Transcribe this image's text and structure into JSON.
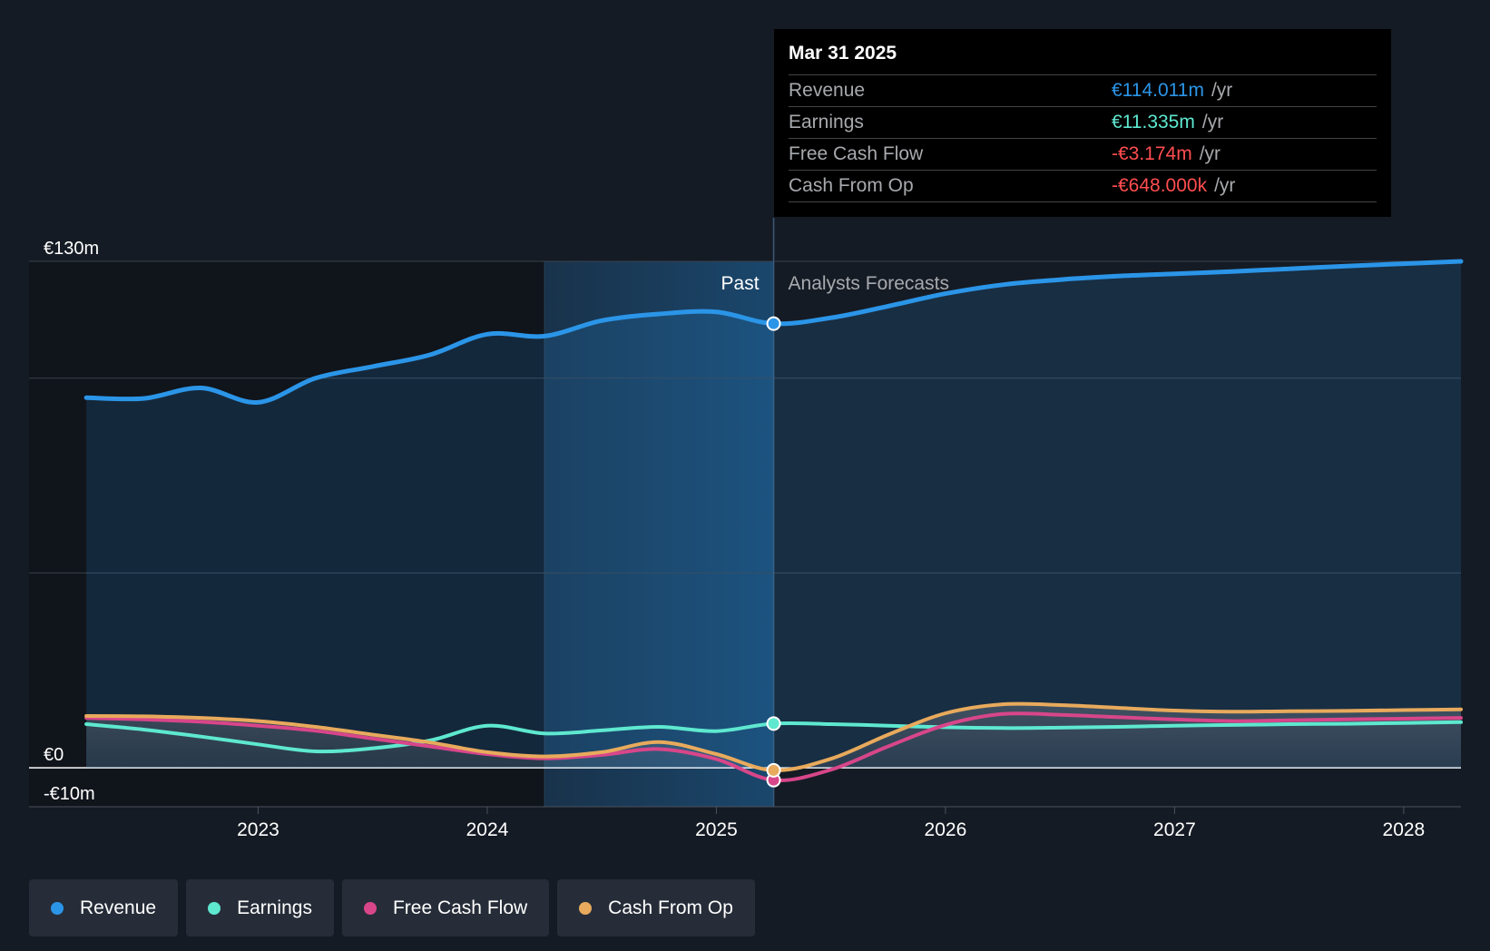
{
  "colors": {
    "background": "#151b24",
    "revenue": "#2b95e8",
    "earnings": "#5ee8d0",
    "fcf": "#d8468a",
    "cfo": "#e8aa5c",
    "negative": "#ff4d4f"
  },
  "tooltip": {
    "date": "Mar 31 2025",
    "rows": [
      {
        "label": "Revenue",
        "value": "€114.011m",
        "unit": "/yr"
      },
      {
        "label": "Earnings",
        "value": "€11.335m",
        "unit": "/yr"
      },
      {
        "label": "Free Cash Flow",
        "value": "-€3.174m",
        "unit": "/yr"
      },
      {
        "label": "Cash From Op",
        "value": "-€648.000k",
        "unit": "/yr"
      }
    ]
  },
  "legend": [
    {
      "label": "Revenue",
      "color": "#2b95e8"
    },
    {
      "label": "Earnings",
      "color": "#5ee8d0"
    },
    {
      "label": "Free Cash Flow",
      "color": "#d8468a"
    },
    {
      "label": "Cash From Op",
      "color": "#e8aa5c"
    }
  ],
  "chart_data": {
    "type": "line",
    "title": "",
    "past_label": "Past",
    "forecast_label": "Analysts Forecasts",
    "divider_x": 2025.25,
    "shade_start_x": 2024.25,
    "x_start": 2022.25,
    "xlim": [
      2022.0,
      2028.25
    ],
    "ylim": [
      -10,
      130
    ],
    "y_ticks": [
      {
        "value": 130,
        "label": "€130m"
      },
      {
        "value": 0,
        "label": "€0"
      },
      {
        "value": -10,
        "label": "-€10m"
      }
    ],
    "y_gridlines": [
      130,
      100,
      50
    ],
    "x_ticks": [
      {
        "value": 2023,
        "label": "2023"
      },
      {
        "value": 2024,
        "label": "2024"
      },
      {
        "value": 2025,
        "label": "2025"
      },
      {
        "value": 2026,
        "label": "2026"
      },
      {
        "value": 2027,
        "label": "2027"
      },
      {
        "value": 2028,
        "label": "2028"
      }
    ],
    "series": [
      {
        "name": "Revenue",
        "key": "revenue",
        "marker_x": 2025.25,
        "points": [
          [
            2022.25,
            95
          ],
          [
            2022.5,
            94.8
          ],
          [
            2022.75,
            97.5
          ],
          [
            2023.0,
            93.8
          ],
          [
            2023.25,
            100
          ],
          [
            2023.5,
            103
          ],
          [
            2023.75,
            106
          ],
          [
            2024.0,
            111.3
          ],
          [
            2024.25,
            110.8
          ],
          [
            2024.5,
            114.8
          ],
          [
            2024.75,
            116.5
          ],
          [
            2025.0,
            117
          ],
          [
            2025.25,
            114.01
          ],
          [
            2025.5,
            115.5
          ],
          [
            2025.75,
            118.5
          ],
          [
            2026.0,
            121.7
          ],
          [
            2026.25,
            124
          ],
          [
            2026.5,
            125.3
          ],
          [
            2026.75,
            126.2
          ],
          [
            2027.0,
            126.8
          ],
          [
            2027.25,
            127.4
          ],
          [
            2027.5,
            128.1
          ],
          [
            2027.75,
            128.8
          ],
          [
            2028.0,
            129.4
          ],
          [
            2028.25,
            130
          ]
        ]
      },
      {
        "name": "Earnings",
        "key": "earnings",
        "marker_x": 2025.25,
        "points": [
          [
            2022.25,
            11.2
          ],
          [
            2022.5,
            9.8
          ],
          [
            2022.75,
            8
          ],
          [
            2023.0,
            6
          ],
          [
            2023.25,
            4.2
          ],
          [
            2023.5,
            5
          ],
          [
            2023.75,
            7
          ],
          [
            2024.0,
            10.8
          ],
          [
            2024.25,
            8.8
          ],
          [
            2024.5,
            9.6
          ],
          [
            2024.75,
            10.5
          ],
          [
            2025.0,
            9.4
          ],
          [
            2025.25,
            11.34
          ],
          [
            2025.5,
            11.2
          ],
          [
            2025.75,
            10.8
          ],
          [
            2026.0,
            10.4
          ],
          [
            2026.25,
            10.2
          ],
          [
            2026.5,
            10.3
          ],
          [
            2026.75,
            10.5
          ],
          [
            2027.0,
            10.8
          ],
          [
            2027.25,
            11
          ],
          [
            2027.5,
            11.2
          ],
          [
            2027.75,
            11.3
          ],
          [
            2028.0,
            11.5
          ],
          [
            2028.25,
            11.7
          ]
        ]
      },
      {
        "name": "Free Cash Flow",
        "key": "fcf",
        "marker_x": 2025.25,
        "points": [
          [
            2022.25,
            12.8
          ],
          [
            2022.5,
            12.4
          ],
          [
            2022.75,
            11.8
          ],
          [
            2023.0,
            10.8
          ],
          [
            2023.25,
            9.5
          ],
          [
            2023.5,
            7.5
          ],
          [
            2023.75,
            5.5
          ],
          [
            2024.0,
            3.5
          ],
          [
            2024.25,
            2.4
          ],
          [
            2024.5,
            3.3
          ],
          [
            2024.75,
            4.8
          ],
          [
            2025.0,
            2.2
          ],
          [
            2025.25,
            -3.17
          ],
          [
            2025.5,
            -0.5
          ],
          [
            2025.75,
            5.5
          ],
          [
            2026.0,
            11
          ],
          [
            2026.25,
            13.8
          ],
          [
            2026.5,
            13.6
          ],
          [
            2026.75,
            13
          ],
          [
            2027.0,
            12.4
          ],
          [
            2027.25,
            12
          ],
          [
            2027.5,
            12.2
          ],
          [
            2027.75,
            12.4
          ],
          [
            2028.0,
            12.6
          ],
          [
            2028.25,
            12.8
          ]
        ]
      },
      {
        "name": "Cash From Op",
        "key": "cfo",
        "marker_x": 2025.25,
        "points": [
          [
            2022.25,
            13.3
          ],
          [
            2022.5,
            13.2
          ],
          [
            2022.75,
            12.8
          ],
          [
            2023.0,
            12
          ],
          [
            2023.25,
            10.5
          ],
          [
            2023.5,
            8.5
          ],
          [
            2023.75,
            6.5
          ],
          [
            2024.0,
            4
          ],
          [
            2024.25,
            2.9
          ],
          [
            2024.5,
            4
          ],
          [
            2024.75,
            6.6
          ],
          [
            2025.0,
            3.5
          ],
          [
            2025.25,
            -0.65
          ],
          [
            2025.5,
            2.3
          ],
          [
            2025.75,
            8.5
          ],
          [
            2026.0,
            14
          ],
          [
            2026.25,
            16.3
          ],
          [
            2026.5,
            16.1
          ],
          [
            2026.75,
            15.4
          ],
          [
            2027.0,
            14.7
          ],
          [
            2027.25,
            14.4
          ],
          [
            2027.5,
            14.5
          ],
          [
            2027.75,
            14.6
          ],
          [
            2028.0,
            14.8
          ],
          [
            2028.25,
            15
          ]
        ]
      }
    ]
  }
}
